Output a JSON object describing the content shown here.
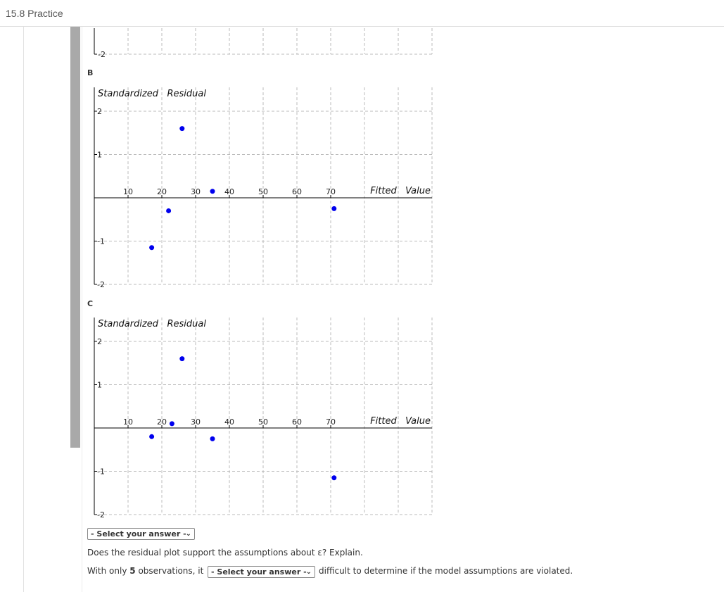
{
  "header": {
    "title": "15.8 Practice"
  },
  "sections": {
    "b_label": "B",
    "c_label": "C"
  },
  "charts": [
    {
      "id": "top-partial",
      "tick_labels": [
        "-2"
      ]
    },
    {
      "id": "B",
      "ylabel": "Standardized   Residual",
      "xlabel": "Fitted   Value",
      "x_ticks": [
        "10",
        "20",
        "30",
        "40",
        "50",
        "60",
        "70"
      ],
      "y_ticks": [
        "2",
        "1",
        "-1",
        "-2"
      ]
    },
    {
      "id": "C",
      "ylabel": "Standardized   Residual",
      "xlabel": "Fitted   Value",
      "x_ticks": [
        "10",
        "20",
        "30",
        "40",
        "50",
        "60",
        "70"
      ],
      "y_ticks": [
        "2",
        "1",
        "-1",
        "-2"
      ]
    }
  ],
  "chart_data": [
    {
      "type": "scatter",
      "title": "",
      "xlabel": "Fitted Value",
      "ylabel": "Standardized Residual",
      "xlim": [
        0,
        100
      ],
      "ylim": [
        -2,
        2
      ],
      "grid": true,
      "x": [
        17,
        22,
        26,
        35,
        71
      ],
      "y": [
        -1.15,
        -0.3,
        1.6,
        0.15,
        -0.25
      ]
    },
    {
      "type": "scatter",
      "title": "",
      "xlabel": "Fitted Value",
      "ylabel": "Standardized Residual",
      "xlim": [
        0,
        100
      ],
      "ylim": [
        -2,
        2
      ],
      "grid": true,
      "x": [
        17,
        23,
        26,
        35,
        71
      ],
      "y": [
        -0.2,
        0.1,
        1.6,
        -0.25,
        -1.15
      ]
    }
  ],
  "controls": {
    "select_placeholder": "- Select your answer -",
    "question": "Does the residual plot support the assumptions about ε? Explain.",
    "sentence_start": "With only ",
    "observations": "5",
    "sentence_mid": " observations, it",
    "sentence_end": "difficult to determine if the model assumptions are violated."
  },
  "colors": {
    "point": "#0000ee",
    "grid": "#bbbbbb",
    "axis": "#000000"
  }
}
